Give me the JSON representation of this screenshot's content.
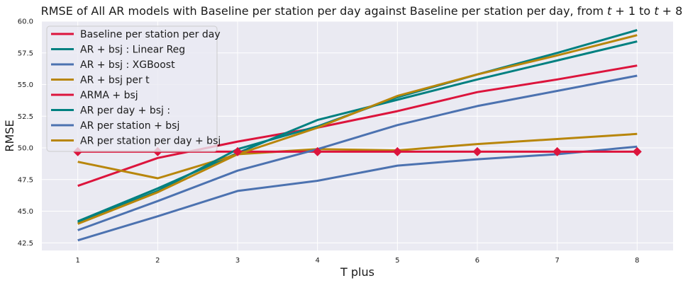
{
  "chart_data": {
    "type": "line",
    "title": "RMSE of All AR models with Baseline per station per day against Baseline per station per day, from t + 1 to t + 8",
    "xlabel": "T plus",
    "ylabel": "RMSE",
    "x": [
      1,
      2,
      3,
      4,
      5,
      6,
      7,
      8
    ],
    "x_ticks": [
      "1",
      "2",
      "3",
      "4",
      "5",
      "6",
      "7",
      "8"
    ],
    "xlim": [
      0.55,
      8.45
    ],
    "y_ticks": [
      "42.5",
      "45.0",
      "47.5",
      "50.0",
      "52.5",
      "55.0",
      "57.5",
      "60.0"
    ],
    "y_tick_values": [
      42.5,
      45.0,
      47.5,
      50.0,
      52.5,
      55.0,
      57.5,
      60.0
    ],
    "ylim": [
      41.9,
      60.0
    ],
    "grid": true,
    "legend_position": "top-left",
    "background": "#eaeaf2",
    "series": [
      {
        "name": "Baseline per station per day",
        "color": "#dc143c",
        "values": [
          47.0,
          49.2,
          50.5,
          51.6,
          52.9,
          54.4,
          55.4,
          56.5
        ]
      },
      {
        "name": "AR + bsj : Linear Reg",
        "color": "#008080",
        "values": [
          44.2,
          46.8,
          49.6,
          52.2,
          53.8,
          55.4,
          56.9,
          58.4
        ]
      },
      {
        "name": "AR + bsj : XGBoost",
        "color": "#4c72b0",
        "values": [
          42.7,
          44.6,
          46.6,
          47.4,
          48.6,
          49.1,
          49.5,
          50.1
        ]
      },
      {
        "name": "AR + bsj per t",
        "color": "#b8860b",
        "values": [
          48.9,
          47.6,
          49.5,
          49.9,
          49.8,
          50.3,
          50.7,
          51.1
        ]
      },
      {
        "name": "ARMA + bsj",
        "color": "#dc143c",
        "values": [
          49.7,
          49.7,
          49.7,
          49.7,
          49.7,
          49.7,
          49.7,
          49.7
        ],
        "markers": true
      },
      {
        "name": "AR per day + bsj :",
        "color": "#008080",
        "values": [
          44.1,
          46.6,
          49.9,
          51.7,
          54.0,
          55.8,
          57.5,
          59.3
        ]
      },
      {
        "name": "AR per station + bsj",
        "color": "#4c72b0",
        "values": [
          43.5,
          45.8,
          48.2,
          49.9,
          51.8,
          53.3,
          54.5,
          55.7
        ]
      },
      {
        "name": "AR per station per day + bsj",
        "color": "#b8860b",
        "values": [
          44.0,
          46.5,
          49.5,
          51.6,
          54.1,
          55.8,
          57.3,
          58.9
        ]
      }
    ]
  }
}
